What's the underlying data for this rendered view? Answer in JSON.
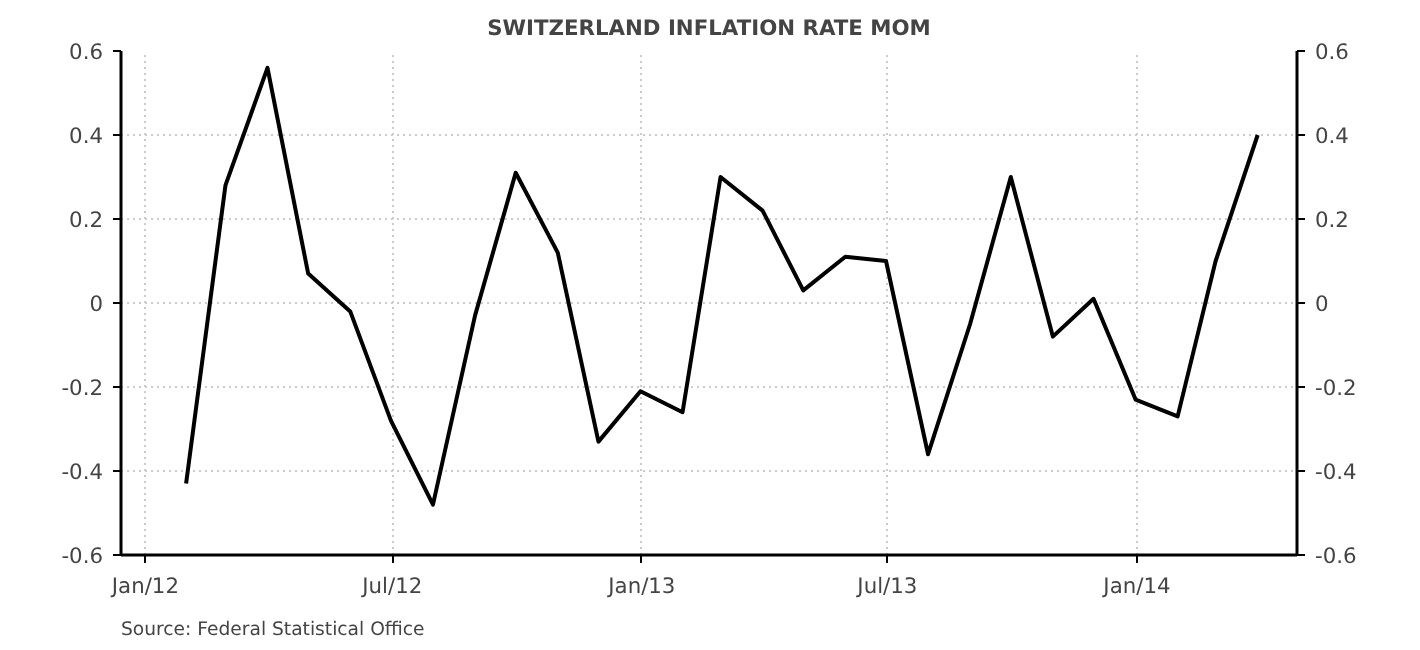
{
  "chart_data": {
    "type": "line",
    "title": "SWITZERLAND INFLATION RATE MOM",
    "x": [
      "2012-01-31",
      "2012-02-29",
      "2012-03-31",
      "2012-04-30",
      "2012-05-31",
      "2012-06-30",
      "2012-07-31",
      "2012-08-31",
      "2012-09-30",
      "2012-10-31",
      "2012-11-30",
      "2012-12-31",
      "2013-01-31",
      "2013-02-28",
      "2013-03-31",
      "2013-04-30",
      "2013-05-31",
      "2013-06-30",
      "2013-07-31",
      "2013-08-31",
      "2013-09-30",
      "2013-10-31",
      "2013-11-30",
      "2013-12-31",
      "2014-01-31",
      "2014-02-28",
      "2014-03-31"
    ],
    "series": [
      {
        "color": "#000000",
        "values": [
          -0.43,
          0.28,
          0.56,
          0.07,
          -0.02,
          -0.28,
          -0.48,
          -0.03,
          0.31,
          0.12,
          -0.33,
          -0.21,
          -0.26,
          0.3,
          0.22,
          0.03,
          0.11,
          0.1,
          -0.36,
          -0.05,
          0.3,
          -0.08,
          0.01,
          -0.23,
          -0.27,
          0.1,
          0.4
        ]
      }
    ],
    "xlim": [
      "2011-12-14",
      "2014-04-29"
    ],
    "xticks": [
      {
        "value": "2012-01-01",
        "label": "Jan/12"
      },
      {
        "value": "2012-07-01",
        "label": "Jul/12"
      },
      {
        "value": "2013-01-01",
        "label": "Jan/13"
      },
      {
        "value": "2013-07-01",
        "label": "Jul/13"
      },
      {
        "value": "2014-01-01",
        "label": "Jan/14"
      }
    ],
    "ylim": [
      -0.6,
      0.6
    ],
    "yticks": [
      -0.6,
      -0.4,
      -0.2,
      0,
      0.2,
      0.4,
      0.6
    ],
    "y2lim": [
      -0.6,
      0.6
    ],
    "y2ticks": [
      -0.6,
      -0.4,
      -0.2,
      0,
      0.2,
      0.4,
      0.6
    ],
    "grid": true,
    "line_style": "solid",
    "marker": "none",
    "annotations": [
      "Source: Federal Statistical Office"
    ]
  }
}
